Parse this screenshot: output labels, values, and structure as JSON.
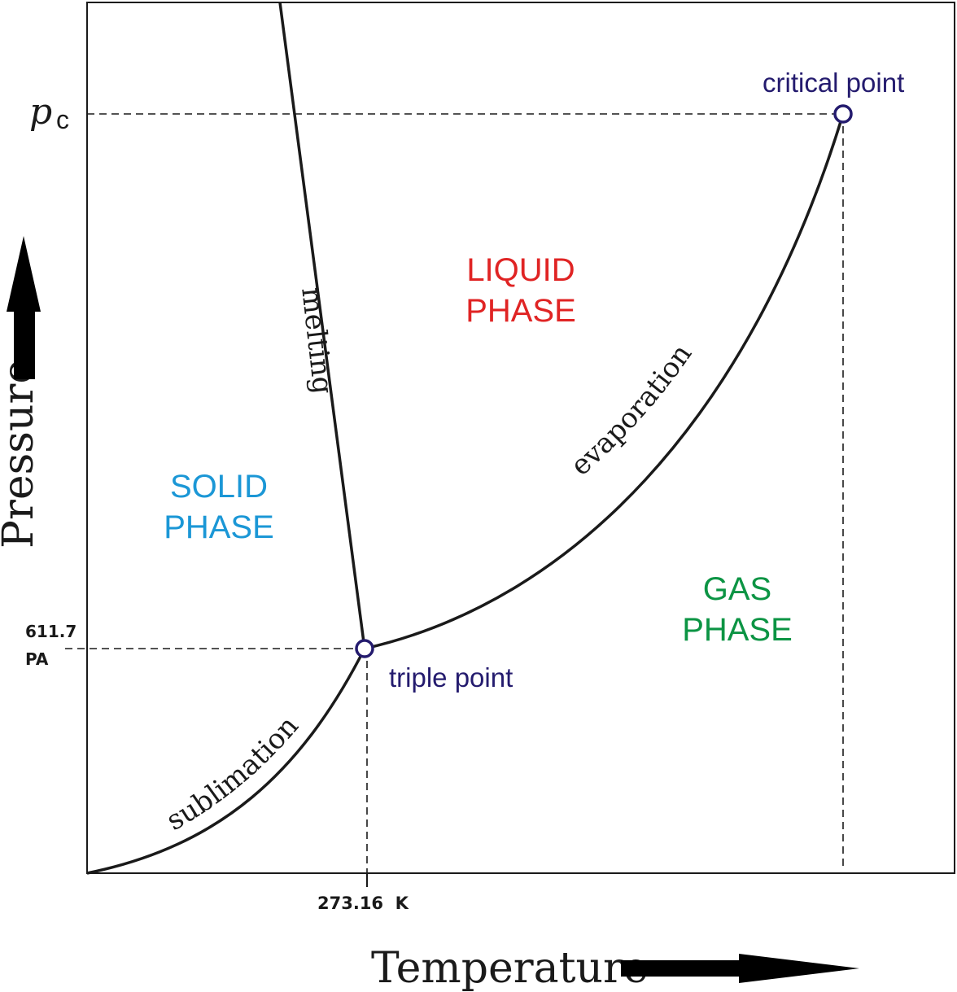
{
  "colors": {
    "solid": "#1b97d6",
    "liquid": "#e02424",
    "gas": "#0c9444",
    "point_text": "#241b6e",
    "point_marker": "#241b6e",
    "line": "#1a1a1a"
  },
  "axes": {
    "x_label": "Temperature",
    "y_label": "Pressure",
    "pc_symbol": "p",
    "pc_subscript": "c"
  },
  "ticks": {
    "triple_temperature": "273.16  K",
    "triple_pressure_value": "611.7",
    "triple_pressure_unit": "PA"
  },
  "regions": {
    "solid": [
      "SOLID",
      "PHASE"
    ],
    "liquid": [
      "LIQUID",
      "PHASE"
    ],
    "gas": [
      "GAS",
      "PHASE"
    ]
  },
  "curves": {
    "melting": "melting",
    "evaporation": "evaporation",
    "sublimation": "sublimation"
  },
  "points": {
    "triple": "triple point",
    "critical": "critical point"
  }
}
